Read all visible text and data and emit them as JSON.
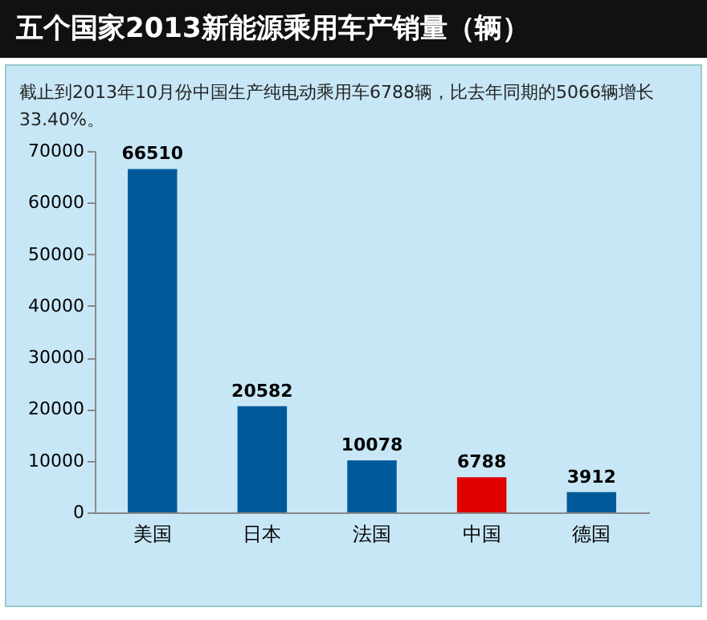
{
  "chart_data": {
    "type": "bar",
    "title": "五个国家2013新能源乘用车产销量（辆）",
    "subtitle": "截止到2013年10月份中国生产纯电动乘用车6788辆，比去年同期的5066辆增长33.40%。",
    "categories": [
      "美国",
      "日本",
      "法国",
      "中国",
      "德国"
    ],
    "values": [
      66510,
      20582,
      10078,
      6788,
      3912
    ],
    "colors": [
      "#005a9a",
      "#005a9a",
      "#005a9a",
      "#e00000",
      "#005a9a"
    ],
    "ylim": [
      0,
      70000
    ],
    "yticks": [
      0,
      10000,
      20000,
      30000,
      40000,
      50000,
      60000,
      70000
    ],
    "data_labels": true
  }
}
